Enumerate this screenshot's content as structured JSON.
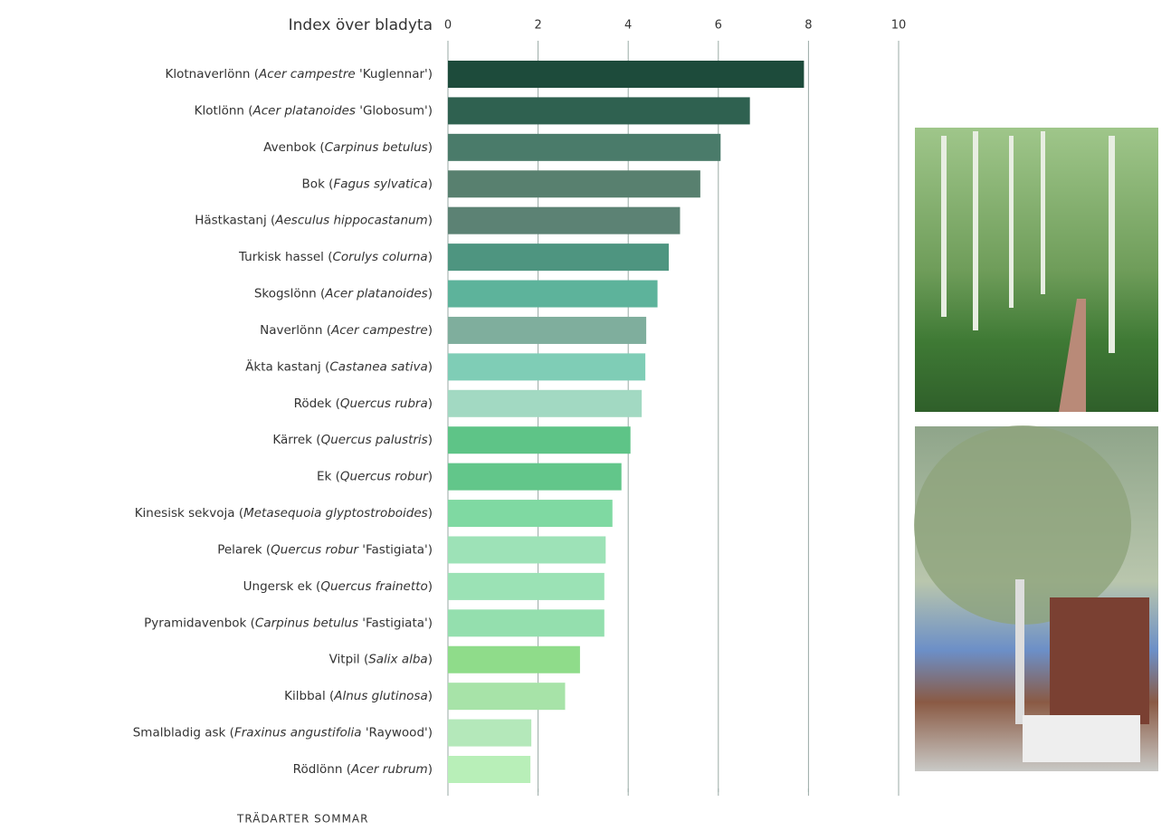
{
  "chart_data": {
    "type": "bar",
    "orientation": "horizontal",
    "title": "Index över bladyta",
    "xlabel": "TRÄDARTER SOMMAR",
    "categories": [
      "Klotnaverlönn (Acer campestre 'Kuglennar')",
      "Klotlönn (Acer platanoides 'Globosum')",
      "Avenbok (Carpinus betulus)",
      "Bok (Fagus sylvatica)",
      "Hästkastanj (Aesculus hippocastanum)",
      "Turkisk hassel (Corulys colurna)",
      "Skogslönn (Acer platanoides)",
      "Naverlönn (Acer campestre)",
      "Äkta kastanj (Castanea sativa)",
      "Rödek (Quercus rubra)",
      "Kärrek (Quercus palustris)",
      "Ek (Quercus robur)",
      "Kinesisk sekvoja (Metasequoia glyptostroboides)",
      "Pelarek (Quercus robur 'Fastigiata')",
      "Ungersk ek (Quercus frainetto)",
      "Pyramidavenbok (Carpinus betulus 'Fastigiata')",
      "Vitpil (Salix alba)",
      "Kilbbal (Alnus glutinosa)",
      "Smalbladig ask (Fraxinus angustifolia 'Raywood')",
      "Rödlönn (Acer rubrum)"
    ],
    "values": [
      7.9,
      6.7,
      6.05,
      5.6,
      5.15,
      4.9,
      4.65,
      4.4,
      4.38,
      4.3,
      4.05,
      3.85,
      3.65,
      3.5,
      3.47,
      3.47,
      2.93,
      2.6,
      1.85,
      1.83
    ],
    "colors": [
      "#1d4b3b",
      "#2f6150",
      "#4a7b6a",
      "#58806f",
      "#5c8274",
      "#4e9580",
      "#5db39b",
      "#7fae9d",
      "#7fcdb6",
      "#a2d9c2",
      "#5ec487",
      "#62c68a",
      "#7fd9a2",
      "#9de2b7",
      "#9be2b5",
      "#94dfae",
      "#8fdc8a",
      "#a7e3a8",
      "#b4e8ba",
      "#b8efb8"
    ],
    "xlim": [
      0,
      10
    ],
    "xticks": [
      0,
      2,
      4,
      6,
      8,
      10
    ],
    "grid": true
  }
}
